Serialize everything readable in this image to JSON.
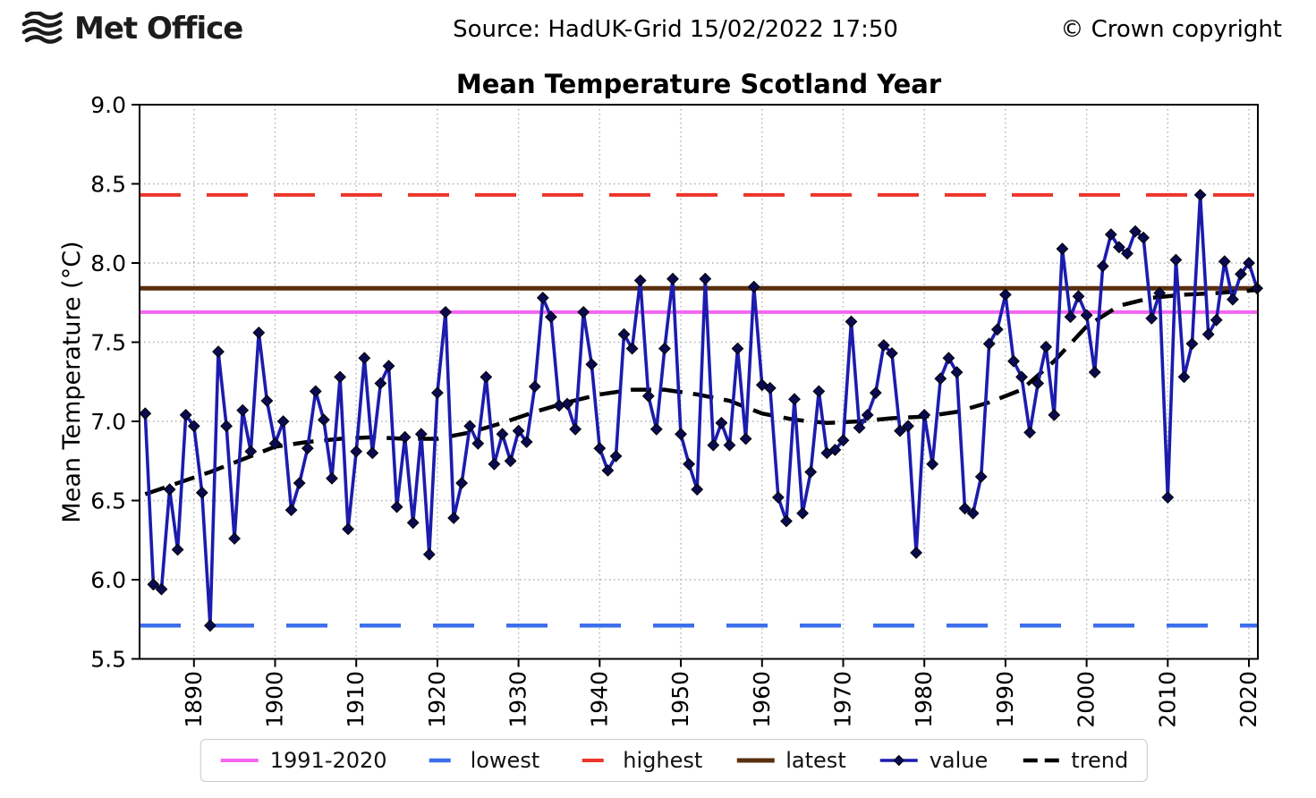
{
  "header": {
    "logo_text": "Met Office",
    "source": "Source: HadUK-Grid 15/02/2022 17:50",
    "copyright": "© Crown copyright"
  },
  "chart": {
    "colors": {
      "average_line": "#f466f2",
      "lowest_line": "#3d6eeb",
      "highest_line": "#ed342a",
      "latest_line": "#5a2f0d",
      "value_line": "#1c1cad",
      "value_marker": "#0a0a50",
      "trend_line": "#000000",
      "grid": "#b0b0b0",
      "axis": "#000000"
    },
    "reference_lines": [
      {
        "id": "highest",
        "label": "highest",
        "value": 8.43,
        "color_key": "highest_line",
        "dash": "46 29",
        "width": 4
      },
      {
        "id": "latest",
        "label": "latest",
        "value": 7.84,
        "color_key": "latest_line",
        "dash": "",
        "width": 5
      },
      {
        "id": "average-1991-2020",
        "label": "1991-2020",
        "value": 7.69,
        "color_key": "average_line",
        "dash": "",
        "width": 4
      },
      {
        "id": "lowest",
        "label": "lowest",
        "value": 5.71,
        "color_key": "lowest_line",
        "dash": "46 36",
        "width": 4.5
      }
    ],
    "legend": [
      {
        "label": "1991-2020",
        "sample": "solid",
        "color_key": "average_line",
        "width": 4
      },
      {
        "label": "lowest",
        "sample": "dash",
        "color_key": "lowest_line",
        "width": 4.5
      },
      {
        "label": "highest",
        "sample": "dash",
        "color_key": "highest_line",
        "width": 4
      },
      {
        "label": "latest",
        "sample": "solid",
        "color_key": "latest_line",
        "width": 5
      },
      {
        "label": "value",
        "sample": "marker-line",
        "color_key": "value_line",
        "width": 3.6
      },
      {
        "label": "trend",
        "sample": "double-dash",
        "color_key": "trend_line",
        "width": 4.5
      }
    ]
  },
  "chart_data": {
    "type": "line",
    "title": "Mean Temperature Scotland Year",
    "xlabel": "",
    "ylabel": "Mean Temperature (°C)",
    "xlim": [
      1883.3,
      2021.1
    ],
    "ylim": [
      5.5,
      9.0
    ],
    "xticks": [
      1890,
      1900,
      1910,
      1920,
      1930,
      1940,
      1950,
      1960,
      1970,
      1980,
      1990,
      2000,
      2010,
      2020
    ],
    "yticks": [
      5.5,
      6.0,
      6.5,
      7.0,
      7.5,
      8.0,
      8.5,
      9.0
    ],
    "grid": true,
    "legend_position": "bottom",
    "x": [
      1884,
      1885,
      1886,
      1887,
      1888,
      1889,
      1890,
      1891,
      1892,
      1893,
      1894,
      1895,
      1896,
      1897,
      1898,
      1899,
      1900,
      1901,
      1902,
      1903,
      1904,
      1905,
      1906,
      1907,
      1908,
      1909,
      1910,
      1911,
      1912,
      1913,
      1914,
      1915,
      1916,
      1917,
      1918,
      1919,
      1920,
      1921,
      1922,
      1923,
      1924,
      1925,
      1926,
      1927,
      1928,
      1929,
      1930,
      1931,
      1932,
      1933,
      1934,
      1935,
      1936,
      1937,
      1938,
      1939,
      1940,
      1941,
      1942,
      1943,
      1944,
      1945,
      1946,
      1947,
      1948,
      1949,
      1950,
      1951,
      1952,
      1953,
      1954,
      1955,
      1956,
      1957,
      1958,
      1959,
      1960,
      1961,
      1962,
      1963,
      1964,
      1965,
      1966,
      1967,
      1968,
      1969,
      1970,
      1971,
      1972,
      1973,
      1974,
      1975,
      1976,
      1977,
      1978,
      1979,
      1980,
      1981,
      1982,
      1983,
      1984,
      1985,
      1986,
      1987,
      1988,
      1989,
      1990,
      1991,
      1992,
      1993,
      1994,
      1995,
      1996,
      1997,
      1998,
      1999,
      2000,
      2001,
      2002,
      2003,
      2004,
      2005,
      2006,
      2007,
      2008,
      2009,
      2010,
      2011,
      2012,
      2013,
      2014,
      2015,
      2016,
      2017,
      2018,
      2019,
      2020,
      2021
    ],
    "series": [
      {
        "name": "value",
        "values": [
          7.05,
          5.97,
          5.94,
          6.57,
          6.19,
          7.04,
          6.97,
          6.55,
          5.71,
          7.44,
          6.97,
          6.26,
          7.07,
          6.81,
          7.56,
          7.13,
          6.86,
          7.0,
          6.44,
          6.61,
          6.83,
          7.19,
          7.01,
          6.64,
          7.28,
          6.32,
          6.81,
          7.4,
          6.8,
          7.24,
          7.35,
          6.46,
          6.9,
          6.36,
          6.92,
          6.16,
          7.18,
          7.69,
          6.39,
          6.61,
          6.97,
          6.86,
          7.28,
          6.73,
          6.92,
          6.75,
          6.94,
          6.87,
          7.22,
          7.78,
          7.66,
          7.1,
          7.11,
          6.95,
          7.69,
          7.36,
          6.83,
          6.69,
          6.78,
          7.55,
          7.46,
          7.89,
          7.16,
          6.95,
          7.46,
          7.9,
          6.92,
          6.73,
          6.57,
          7.9,
          6.85,
          6.99,
          6.85,
          7.46,
          6.89,
          7.85,
          7.23,
          7.21,
          6.52,
          6.37,
          7.14,
          6.42,
          6.68,
          7.19,
          6.8,
          6.82,
          6.88,
          7.63,
          6.96,
          7.04,
          7.18,
          7.48,
          7.43,
          6.94,
          6.97,
          6.17,
          7.04,
          6.73,
          7.27,
          7.4,
          7.31,
          6.45,
          6.42,
          6.65,
          7.49,
          7.58,
          7.8,
          7.38,
          7.28,
          6.93,
          7.24,
          7.47,
          7.04,
          8.09,
          7.66,
          7.79,
          7.67,
          7.31,
          7.98,
          8.18,
          8.1,
          8.06,
          8.2,
          8.16,
          7.65,
          7.81,
          6.52,
          8.02,
          7.28,
          7.49,
          8.43,
          7.55,
          7.64,
          8.01,
          7.77,
          7.93,
          8.0,
          7.84
        ]
      },
      {
        "name": "trend",
        "x": [
          1884,
          1888,
          1892,
          1896,
          1900,
          1904,
          1908,
          1912,
          1916,
          1920,
          1924,
          1928,
          1932,
          1936,
          1940,
          1944,
          1948,
          1952,
          1956,
          1960,
          1964,
          1968,
          1972,
          1976,
          1980,
          1984,
          1988,
          1992,
          1996,
          2000,
          2004,
          2008,
          2012,
          2016,
          2021
        ],
        "values": [
          6.54,
          6.61,
          6.68,
          6.76,
          6.84,
          6.87,
          6.89,
          6.9,
          6.89,
          6.89,
          6.93,
          6.99,
          7.06,
          7.12,
          7.17,
          7.2,
          7.2,
          7.17,
          7.13,
          7.05,
          7.01,
          6.99,
          7.0,
          7.02,
          7.03,
          7.06,
          7.12,
          7.2,
          7.38,
          7.6,
          7.73,
          7.78,
          7.8,
          7.81,
          7.83
        ]
      }
    ],
    "reference_values": {
      "highest": 8.43,
      "lowest": 5.71,
      "latest": 7.84,
      "average_1991_2020": 7.69
    }
  }
}
